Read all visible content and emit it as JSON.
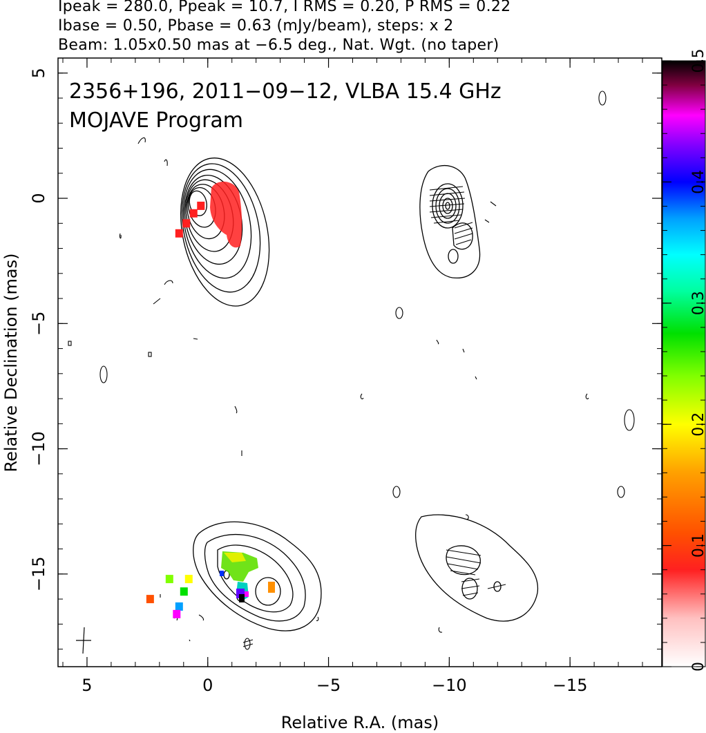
{
  "header": {
    "line1": "Ipeak = 280.0, Ppeak = 10.7, I RMS = 0.20, P RMS = 0.22",
    "line2": "Ibase = 0.50, Pbase = 0.63 (mJy/beam), steps: x 2",
    "line3": "Beam: 1.05x0.50 mas at −6.5 deg., Nat. Wgt. (no taper)"
  },
  "chart_data": {
    "type": "heatmap",
    "title": "2356+196, 2011−09−12, VLBA 15.4 GHz",
    "subtitle": "MOJAVE Program",
    "xlabel": "Relative R.A. (mas)",
    "ylabel": "Relative Declination (mas)",
    "xlim": [
      6.2,
      -18.8
    ],
    "ylim": [
      -18.7,
      5.6
    ],
    "x_ticks": [
      5,
      0,
      -5,
      -10,
      -15
    ],
    "x_tick_labels": [
      "5",
      "0",
      "−5",
      "−10",
      "−15"
    ],
    "y_ticks": [
      5,
      0,
      -5,
      -10,
      -15
    ],
    "y_tick_labels": [
      "5",
      "0",
      "−5",
      "−10",
      "−15"
    ],
    "colorbar": {
      "range": [
        0,
        0.5
      ],
      "ticks": [
        0,
        0.1,
        0.2,
        0.3,
        0.4,
        0.5
      ],
      "tick_labels": [
        "0",
        "0.1",
        "0.2",
        "0.3",
        "0.4",
        "0.5"
      ]
    },
    "panels": [
      {
        "name": "top-left",
        "x_center": 0.4,
        "y_center": -0.2,
        "contour_rx": [
          0.35,
          0.55,
          0.75,
          0.95,
          1.15,
          1.35,
          1.55,
          1.75
        ],
        "contour_ry": [
          0.5,
          0.8,
          1.1,
          1.45,
          1.8,
          2.2,
          2.6,
          3.0
        ]
      },
      {
        "name": "top-right",
        "x_center": -9.4,
        "y_center": -0.2
      },
      {
        "name": "bottom-left",
        "x_center": -1.8,
        "y_center": -15.4
      },
      {
        "name": "bottom-right",
        "x_center": -10.6,
        "y_center": -15.6
      }
    ],
    "fractional_pol_pixels": [
      {
        "x": 0.3,
        "y": -0.3,
        "v": 0.08
      },
      {
        "x": 0.6,
        "y": -0.6,
        "v": 0.09
      },
      {
        "x": 0.9,
        "y": -1.0,
        "v": 0.08
      },
      {
        "x": 1.2,
        "y": -1.4,
        "v": 0.09
      },
      {
        "x": 0.8,
        "y": -15.2,
        "v": 0.22
      },
      {
        "x": 1.6,
        "y": -15.2,
        "v": 0.24
      },
      {
        "x": 1.0,
        "y": -15.7,
        "v": 0.26
      },
      {
        "x": 1.2,
        "y": -16.3,
        "v": 0.38
      },
      {
        "x": 1.3,
        "y": -16.6,
        "v": 0.45
      },
      {
        "x": 2.4,
        "y": -16.0,
        "v": 0.13
      }
    ]
  }
}
